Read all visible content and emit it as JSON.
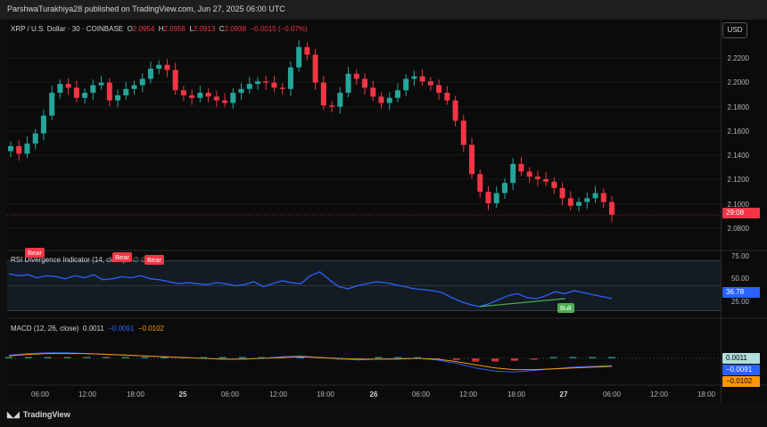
{
  "header": {
    "published": "ParshwaTurakhiya28 published on TradingView.com, Jun 27, 2025 06:00 UTC"
  },
  "symbol": {
    "name": "XRP / U.S. Dollar · 30 · COINBASE",
    "open_label": "O",
    "open": "2.0954",
    "high_label": "H",
    "high": "2.0956",
    "low_label": "L",
    "low": "2.0913",
    "close_label": "C",
    "close": "2.0938",
    "change": "−0.0015 (−0.07%)"
  },
  "currency_button": "USD",
  "price_axis": {
    "ticks": [
      "2.2200",
      "2.2000",
      "2.1800",
      "2.1600",
      "2.1400",
      "2.1200",
      "2.1000",
      "2.0800"
    ],
    "last_price_tag": "29:08"
  },
  "rsi": {
    "label": "RSI Divergence Indicator (14, close)",
    "placeholders": "∅ ∅ ∅ ∅",
    "ticks": [
      "75.00",
      "50.00",
      "25.00"
    ],
    "current": "36.78",
    "signals": {
      "bear1": "Bear",
      "bear2": "Bear",
      "bear3": "Bear",
      "bull": "Bull"
    }
  },
  "macd": {
    "label": "MACD (12, 26, close)",
    "hist": "0.0011",
    "macd": "−0.0091",
    "signal": "−0.0102",
    "tags": {
      "hist": "0.0011",
      "macd": "−0.0091",
      "signal": "−0.0102"
    }
  },
  "time_axis": {
    "ticks": [
      "06:00",
      "12:00",
      "18:00",
      "25",
      "06:00",
      "12:00",
      "18:00",
      "26",
      "06:00",
      "12:00",
      "18:00",
      "27",
      "06:00",
      "12:00",
      "18:00"
    ]
  },
  "brand": "TradingView",
  "colors": {
    "up": "#26a69a",
    "down": "#f23645",
    "rsi_line": "#2962ff",
    "macd_line": "#2962ff",
    "signal_line": "#ff9800",
    "bull": "#4caf50",
    "bear": "#f23645"
  },
  "chart_data": [
    {
      "type": "candlestick",
      "title": "XRP / U.S. Dollar · 30 · COINBASE",
      "ylim": [
        2.07,
        2.235
      ],
      "close_series": [
        2.148,
        2.142,
        2.15,
        2.158,
        2.172,
        2.19,
        2.197,
        2.194,
        2.186,
        2.19,
        2.196,
        2.198,
        2.184,
        2.188,
        2.193,
        2.196,
        2.201,
        2.209,
        2.212,
        2.208,
        2.192,
        2.188,
        2.186,
        2.19,
        2.187,
        2.184,
        2.182,
        2.19,
        2.193,
        2.197,
        2.199,
        2.198,
        2.194,
        2.193,
        2.21,
        2.226,
        2.22,
        2.198,
        2.18,
        2.179,
        2.19,
        2.205,
        2.201,
        2.194,
        2.187,
        2.182,
        2.186,
        2.192,
        2.201,
        2.203,
        2.199,
        2.196,
        2.19,
        2.184,
        2.168,
        2.149,
        2.126,
        2.112,
        2.103,
        2.111,
        2.119,
        2.134,
        2.128,
        2.124,
        2.122,
        2.12,
        2.115,
        2.107,
        2.101,
        2.104,
        2.107,
        2.111,
        2.104,
        2.094
      ]
    },
    {
      "type": "line",
      "title": "RSI Divergence Indicator (14, close)",
      "ylim": [
        20,
        80
      ],
      "values": [
        62,
        60,
        61,
        58,
        60,
        59,
        57,
        60,
        58,
        61,
        56,
        57,
        59,
        58,
        60,
        57,
        56,
        54,
        52,
        53,
        52,
        51,
        53,
        52,
        50,
        51,
        54,
        49,
        52,
        55,
        53,
        52,
        60,
        64,
        56,
        49,
        47,
        50,
        52,
        54,
        53,
        51,
        49,
        47,
        46,
        45,
        43,
        38,
        34,
        31,
        29,
        32,
        36,
        40,
        42,
        38,
        37,
        40,
        44,
        42,
        45,
        43,
        41,
        39,
        37
      ]
    },
    {
      "type": "line",
      "title": "MACD (12, 26, close)",
      "series": [
        {
          "name": "MACD",
          "values": [
            0.004,
            0.006,
            0.007,
            0.007,
            0.006,
            0.005,
            0.004,
            0.003,
            0.002,
            0.001,
            0.0,
            -0.001,
            -0.001,
            0.0,
            0.002,
            0.003,
            0.001,
            -0.001,
            -0.002,
            -0.001,
            0.0,
            0.0,
            -0.002,
            -0.006,
            -0.012,
            -0.016,
            -0.017,
            -0.015,
            -0.013,
            -0.011,
            -0.01,
            -0.009
          ]
        },
        {
          "name": "Signal",
          "values": [
            0.003,
            0.005,
            0.006,
            0.006,
            0.006,
            0.005,
            0.004,
            0.003,
            0.002,
            0.001,
            0.0,
            -0.001,
            -0.001,
            0.0,
            0.001,
            0.002,
            0.001,
            0.0,
            -0.001,
            -0.001,
            -0.001,
            0.0,
            -0.001,
            -0.004,
            -0.008,
            -0.012,
            -0.014,
            -0.014,
            -0.013,
            -0.012,
            -0.011,
            -0.01
          ]
        }
      ],
      "hist_values": [
        0.001,
        0.001,
        0.001,
        0.001,
        0.0,
        0.0,
        0.0,
        0.0,
        0.0,
        0.0,
        0.0,
        0.0,
        0.0,
        0.0,
        0.001,
        0.001,
        0.0,
        -0.001,
        -0.001,
        0.0,
        0.001,
        0.0,
        -0.001,
        -0.002,
        -0.004,
        -0.004,
        -0.003,
        -0.001,
        0.0,
        0.001,
        0.001,
        0.001
      ]
    }
  ]
}
